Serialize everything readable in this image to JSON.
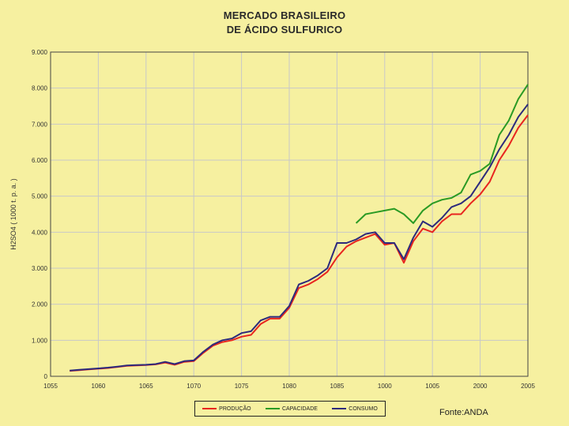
{
  "chart_data": {
    "type": "line",
    "title_line1": "MERCADO BRASILEIRO",
    "title_line2": "DE ÁCIDO SULFURICO",
    "ylabel": "H2SO4 ( 1000 t. p. a. )",
    "xlabel": "",
    "source": "Fonte:ANDA",
    "xlim": [
      1955,
      2005
    ],
    "ylim": [
      0,
      9000
    ],
    "x_ticks": [
      "1055",
      "1060",
      "1065",
      "1070",
      "1075",
      "1080",
      "1085",
      "1000",
      "1005",
      "2000",
      "2005"
    ],
    "y_ticks": [
      "0",
      "1.000",
      "2.000",
      "3.000",
      "4.000",
      "5.000",
      "6.000",
      "7.000",
      "8.000",
      "9.000"
    ],
    "grid": true,
    "legend_position": "bottom-center",
    "colors": {
      "producao": "#e8251f",
      "capacidade": "#2a9a24",
      "consumo": "#2c2a7c",
      "grid": "#c8c8c8",
      "plot_bg": "#f6f0a0"
    },
    "series": [
      {
        "name": "PRODUÇÃO",
        "key": "producao",
        "x": [
          1957,
          1958,
          1959,
          1960,
          1961,
          1962,
          1963,
          1964,
          1965,
          1966,
          1967,
          1968,
          1969,
          1970,
          1971,
          1972,
          1973,
          1974,
          1975,
          1976,
          1977,
          1978,
          1979,
          1980,
          1981,
          1982,
          1983,
          1984,
          1985,
          1986,
          1987,
          1988,
          1989,
          1990,
          1991,
          1992,
          1993,
          1994,
          1995,
          1996,
          1997,
          1998,
          1999,
          2000,
          2001,
          2002,
          2003,
          2004,
          2005
        ],
        "y": [
          150,
          170,
          190,
          210,
          230,
          260,
          290,
          300,
          310,
          330,
          380,
          320,
          400,
          420,
          650,
          850,
          950,
          1000,
          1100,
          1150,
          1450,
          1600,
          1600,
          1900,
          2450,
          2550,
          2700,
          2900,
          3300,
          3600,
          3750,
          3850,
          3950,
          3650,
          3700,
          3150,
          3750,
          4100,
          4000,
          4300,
          4500,
          4500,
          4800,
          5050,
          5400,
          6000,
          6400,
          6900,
          7250
        ]
      },
      {
        "name": "CAPACIDADE",
        "key": "capacidade",
        "x": [
          1987,
          1988,
          1989,
          1990,
          1991,
          1992,
          1993,
          1994,
          1995,
          1996,
          1997,
          1998,
          1999,
          2000,
          2001,
          2002,
          2003,
          2004,
          2005
        ],
        "y": [
          4250,
          4500,
          4550,
          4600,
          4650,
          4500,
          4250,
          4600,
          4800,
          4900,
          4950,
          5100,
          5600,
          5700,
          5900,
          6700,
          7100,
          7700,
          8100
        ]
      },
      {
        "name": "CONSUMO",
        "key": "consumo",
        "x": [
          1957,
          1958,
          1959,
          1960,
          1961,
          1962,
          1963,
          1964,
          1965,
          1966,
          1967,
          1968,
          1969,
          1970,
          1971,
          1972,
          1973,
          1974,
          1975,
          1976,
          1977,
          1978,
          1979,
          1980,
          1981,
          1982,
          1983,
          1984,
          1985,
          1986,
          1987,
          1988,
          1989,
          1990,
          1991,
          1992,
          1993,
          1994,
          1995,
          1996,
          1997,
          1998,
          1999,
          2000,
          2001,
          2002,
          2003,
          2004,
          2005
        ],
        "y": [
          160,
          180,
          200,
          220,
          240,
          270,
          300,
          310,
          320,
          340,
          400,
          340,
          420,
          440,
          680,
          880,
          1000,
          1050,
          1200,
          1250,
          1550,
          1650,
          1650,
          1950,
          2550,
          2650,
          2800,
          3000,
          3700,
          3700,
          3800,
          3950,
          4000,
          3700,
          3700,
          3250,
          3850,
          4300,
          4150,
          4400,
          4700,
          4800,
          5000,
          5400,
          5800,
          6300,
          6700,
          7200,
          7550
        ]
      }
    ]
  }
}
